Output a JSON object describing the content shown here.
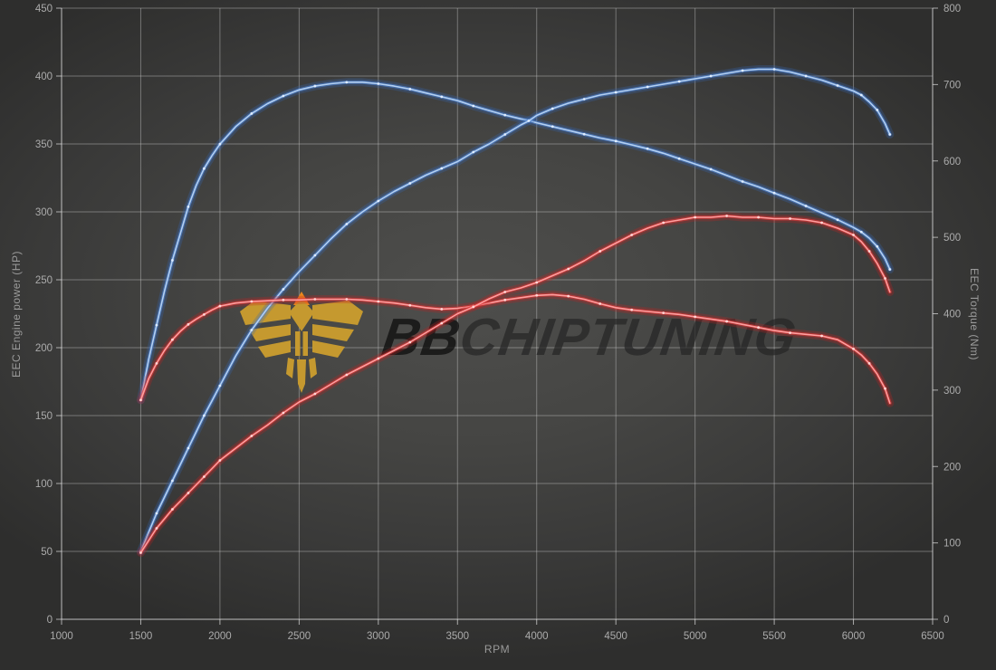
{
  "chart_data": {
    "type": "line",
    "xlabel": "RPM",
    "ylabel_left": "EEC Engine power (HP)",
    "ylabel_right": "EEC Torque (Nm)",
    "x_range": [
      1000,
      6500
    ],
    "x_ticks": [
      1000,
      1500,
      2000,
      2500,
      3000,
      3500,
      4000,
      4500,
      5000,
      5500,
      6000,
      6500
    ],
    "y_left_range": [
      0,
      450
    ],
    "y_left_ticks": [
      0,
      50,
      100,
      150,
      200,
      250,
      300,
      350,
      400,
      450
    ],
    "y_right_range": [
      0,
      800
    ],
    "y_right_ticks": [
      0,
      100,
      200,
      300,
      400,
      500,
      600,
      700,
      800
    ],
    "grid": "on",
    "legend": "none",
    "watermark": {
      "text_bold": "BB",
      "text_rest": "CHIPTUNING"
    },
    "colors": {
      "blue_glow": "#3567b8",
      "blue_mid": "#4b82d6",
      "blue_core": "#b3d0f2",
      "blue_dot": "#e2eeff",
      "red_glow": "#c61f1f",
      "red_mid": "#e03535",
      "red_core": "#ff9e9e",
      "red_dot": "#ffd9d9",
      "grid": "rgba(205,205,205,0.42)",
      "axis": "rgba(225,225,225,0.7)",
      "tick_text": "#ababab",
      "logo_gold": "#c5992f",
      "logo_orange": "#e8871e",
      "watermark_bb": "rgba(16,16,16,0.8)",
      "watermark_rest": "rgba(38,38,38,0.72)"
    },
    "series": [
      {
        "name": "torque-blue",
        "axis": "right",
        "color": "blue",
        "points": [
          [
            1500,
            287
          ],
          [
            1550,
            340
          ],
          [
            1600,
            385
          ],
          [
            1650,
            430
          ],
          [
            1700,
            470
          ],
          [
            1750,
            505
          ],
          [
            1800,
            540
          ],
          [
            1850,
            568
          ],
          [
            1900,
            590
          ],
          [
            1950,
            607
          ],
          [
            2000,
            622
          ],
          [
            2100,
            645
          ],
          [
            2200,
            662
          ],
          [
            2300,
            675
          ],
          [
            2400,
            685
          ],
          [
            2500,
            693
          ],
          [
            2600,
            698
          ],
          [
            2700,
            701
          ],
          [
            2800,
            703
          ],
          [
            2900,
            703
          ],
          [
            3000,
            701
          ],
          [
            3100,
            698
          ],
          [
            3200,
            694
          ],
          [
            3300,
            689
          ],
          [
            3400,
            684
          ],
          [
            3500,
            679
          ],
          [
            3600,
            672
          ],
          [
            3700,
            666
          ],
          [
            3800,
            660
          ],
          [
            3900,
            655
          ],
          [
            3950,
            653
          ],
          [
            4000,
            650
          ],
          [
            4100,
            645
          ],
          [
            4200,
            640
          ],
          [
            4300,
            635
          ],
          [
            4400,
            630
          ],
          [
            4500,
            626
          ],
          [
            4600,
            621
          ],
          [
            4700,
            616
          ],
          [
            4800,
            610
          ],
          [
            4900,
            603
          ],
          [
            5000,
            596
          ],
          [
            5100,
            589
          ],
          [
            5200,
            581
          ],
          [
            5300,
            573
          ],
          [
            5400,
            566
          ],
          [
            5500,
            558
          ],
          [
            5600,
            550
          ],
          [
            5700,
            541
          ],
          [
            5800,
            532
          ],
          [
            5900,
            523
          ],
          [
            6000,
            513
          ],
          [
            6050,
            507
          ],
          [
            6100,
            499
          ],
          [
            6150,
            488
          ],
          [
            6200,
            472
          ],
          [
            6230,
            458
          ]
        ]
      },
      {
        "name": "power-blue",
        "axis": "left",
        "color": "blue",
        "points": [
          [
            1500,
            50
          ],
          [
            1550,
            64
          ],
          [
            1600,
            78
          ],
          [
            1650,
            90
          ],
          [
            1700,
            102
          ],
          [
            1750,
            114
          ],
          [
            1800,
            126
          ],
          [
            1850,
            138
          ],
          [
            1900,
            150
          ],
          [
            1950,
            161
          ],
          [
            2000,
            172
          ],
          [
            2100,
            194
          ],
          [
            2200,
            213
          ],
          [
            2300,
            229
          ],
          [
            2400,
            243
          ],
          [
            2500,
            256
          ],
          [
            2600,
            268
          ],
          [
            2700,
            280
          ],
          [
            2800,
            291
          ],
          [
            2900,
            300
          ],
          [
            3000,
            308
          ],
          [
            3100,
            315
          ],
          [
            3200,
            321
          ],
          [
            3300,
            327
          ],
          [
            3400,
            332
          ],
          [
            3500,
            337
          ],
          [
            3600,
            344
          ],
          [
            3700,
            350
          ],
          [
            3800,
            357
          ],
          [
            3900,
            364
          ],
          [
            3950,
            367
          ],
          [
            4000,
            371
          ],
          [
            4100,
            376
          ],
          [
            4200,
            380
          ],
          [
            4300,
            383
          ],
          [
            4400,
            386
          ],
          [
            4500,
            388
          ],
          [
            4600,
            390
          ],
          [
            4700,
            392
          ],
          [
            4800,
            394
          ],
          [
            4900,
            396
          ],
          [
            5000,
            398
          ],
          [
            5100,
            400
          ],
          [
            5200,
            402
          ],
          [
            5300,
            404
          ],
          [
            5400,
            405
          ],
          [
            5500,
            405
          ],
          [
            5600,
            403
          ],
          [
            5700,
            400
          ],
          [
            5800,
            397
          ],
          [
            5900,
            393
          ],
          [
            6000,
            389
          ],
          [
            6050,
            386
          ],
          [
            6100,
            381
          ],
          [
            6150,
            375
          ],
          [
            6200,
            365
          ],
          [
            6230,
            357
          ]
        ]
      },
      {
        "name": "torque-red",
        "axis": "right",
        "color": "red",
        "points": [
          [
            1500,
            287
          ],
          [
            1550,
            315
          ],
          [
            1600,
            335
          ],
          [
            1650,
            352
          ],
          [
            1700,
            366
          ],
          [
            1750,
            377
          ],
          [
            1800,
            386
          ],
          [
            1850,
            393
          ],
          [
            1900,
            399
          ],
          [
            1950,
            405
          ],
          [
            2000,
            410
          ],
          [
            2100,
            414
          ],
          [
            2200,
            416
          ],
          [
            2300,
            417
          ],
          [
            2400,
            418
          ],
          [
            2500,
            418
          ],
          [
            2600,
            419
          ],
          [
            2700,
            419
          ],
          [
            2800,
            419
          ],
          [
            2900,
            418
          ],
          [
            3000,
            416
          ],
          [
            3100,
            414
          ],
          [
            3200,
            411
          ],
          [
            3300,
            408
          ],
          [
            3400,
            406
          ],
          [
            3500,
            407
          ],
          [
            3600,
            410
          ],
          [
            3700,
            414
          ],
          [
            3800,
            418
          ],
          [
            3900,
            421
          ],
          [
            4000,
            424
          ],
          [
            4100,
            425
          ],
          [
            4200,
            423
          ],
          [
            4300,
            419
          ],
          [
            4400,
            413
          ],
          [
            4500,
            408
          ],
          [
            4600,
            405
          ],
          [
            4700,
            403
          ],
          [
            4800,
            401
          ],
          [
            4900,
            399
          ],
          [
            5000,
            396
          ],
          [
            5100,
            393
          ],
          [
            5200,
            390
          ],
          [
            5300,
            386
          ],
          [
            5400,
            382
          ],
          [
            5500,
            378
          ],
          [
            5600,
            375
          ],
          [
            5700,
            373
          ],
          [
            5800,
            371
          ],
          [
            5900,
            366
          ],
          [
            6000,
            354
          ],
          [
            6050,
            346
          ],
          [
            6100,
            335
          ],
          [
            6150,
            321
          ],
          [
            6200,
            302
          ],
          [
            6230,
            283
          ]
        ]
      },
      {
        "name": "power-red",
        "axis": "left",
        "color": "red",
        "points": [
          [
            1500,
            49
          ],
          [
            1550,
            58
          ],
          [
            1600,
            67
          ],
          [
            1650,
            74
          ],
          [
            1700,
            81
          ],
          [
            1750,
            87
          ],
          [
            1800,
            93
          ],
          [
            1850,
            99
          ],
          [
            1900,
            105
          ],
          [
            1950,
            111
          ],
          [
            2000,
            117
          ],
          [
            2100,
            126
          ],
          [
            2200,
            135
          ],
          [
            2300,
            143
          ],
          [
            2400,
            152
          ],
          [
            2500,
            160
          ],
          [
            2600,
            166
          ],
          [
            2700,
            173
          ],
          [
            2800,
            180
          ],
          [
            2900,
            186
          ],
          [
            3000,
            192
          ],
          [
            3100,
            198
          ],
          [
            3200,
            204
          ],
          [
            3300,
            211
          ],
          [
            3400,
            218
          ],
          [
            3500,
            225
          ],
          [
            3600,
            230
          ],
          [
            3700,
            236
          ],
          [
            3800,
            241
          ],
          [
            3900,
            244
          ],
          [
            4000,
            248
          ],
          [
            4100,
            253
          ],
          [
            4200,
            258
          ],
          [
            4300,
            264
          ],
          [
            4400,
            271
          ],
          [
            4500,
            277
          ],
          [
            4600,
            283
          ],
          [
            4700,
            288
          ],
          [
            4800,
            292
          ],
          [
            4900,
            294
          ],
          [
            5000,
            296
          ],
          [
            5100,
            296
          ],
          [
            5200,
            297
          ],
          [
            5300,
            296
          ],
          [
            5400,
            296
          ],
          [
            5500,
            295
          ],
          [
            5600,
            295
          ],
          [
            5700,
            294
          ],
          [
            5800,
            292
          ],
          [
            5900,
            288
          ],
          [
            6000,
            283
          ],
          [
            6050,
            278
          ],
          [
            6100,
            271
          ],
          [
            6150,
            262
          ],
          [
            6200,
            251
          ],
          [
            6230,
            241
          ]
        ]
      }
    ]
  }
}
